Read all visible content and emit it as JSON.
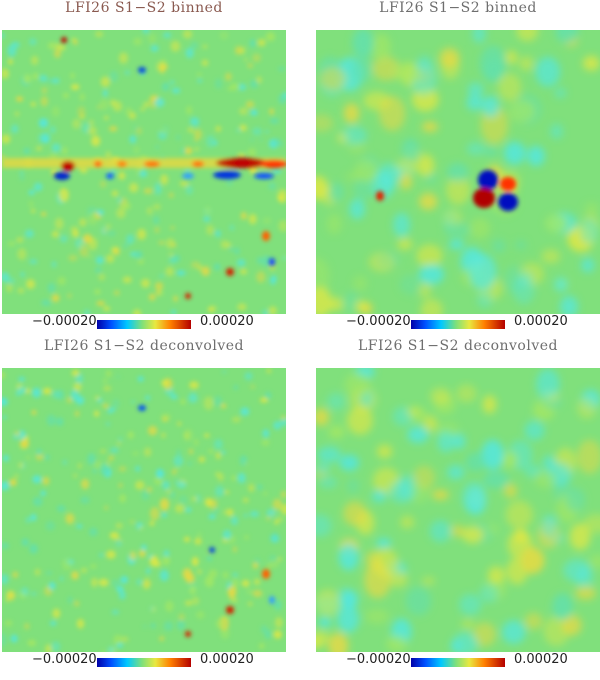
{
  "panels": [
    {
      "title": "LFI26  S1−S2 binned",
      "cbar_min": "−0.00020",
      "cbar_max": "0.00020"
    },
    {
      "title": "LFI26  S1−S2 binned",
      "cbar_min": "−0.00020",
      "cbar_max": "0.00020"
    },
    {
      "title": "LFI26  S1−S2 deconvolved",
      "cbar_min": "−0.00020",
      "cbar_max": "0.00020"
    },
    {
      "title": "LFI26  S1−S2 deconvolved",
      "cbar_min": "−0.00020",
      "cbar_max": "0.00020"
    }
  ],
  "colors": {
    "background_map": "#7fe07a",
    "cold": "#0000a8",
    "cyan": "#50e8e8",
    "yellow": "#e8e840",
    "hot": "#b40000"
  }
}
